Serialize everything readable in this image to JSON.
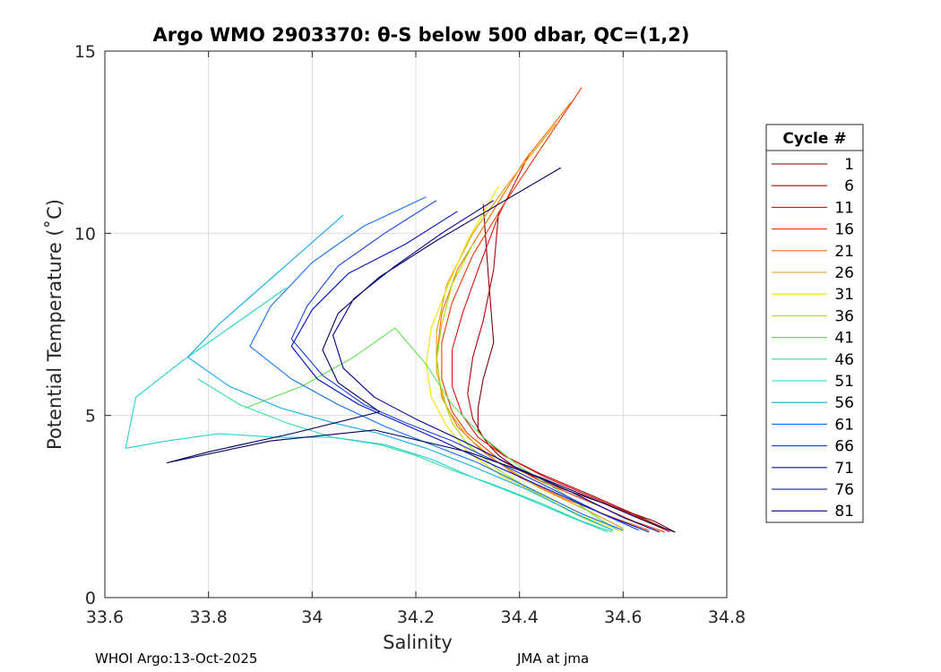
{
  "chart_data": {
    "type": "line",
    "title": "Argo WMO 2903370: θ-S below 500 dbar,  QC=(1,2)",
    "xlabel": "Salinity",
    "ylabel": "Potential Temperature (˚C)",
    "xlim": [
      33.6,
      34.8
    ],
    "ylim": [
      0,
      15
    ],
    "xticks": [
      33.6,
      33.8,
      34,
      34.2,
      34.4,
      34.6,
      34.8
    ],
    "xtick_labels": [
      "33.6",
      "33.8",
      "34",
      "34.2",
      "34.4",
      "34.6",
      "34.8"
    ],
    "yticks": [
      0,
      5,
      10,
      15
    ],
    "ytick_labels": [
      "0",
      "5",
      "10",
      "15"
    ],
    "grid": true,
    "legend": {
      "title": "Cycle #",
      "placement": "right-outside",
      "entries": [
        {
          "label": "1",
          "color": "#800000"
        },
        {
          "label": "6",
          "color": "#b00000"
        },
        {
          "label": "11",
          "color": "#e01010"
        },
        {
          "label": "16",
          "color": "#f03a00"
        },
        {
          "label": "21",
          "color": "#ff6a00"
        },
        {
          "label": "26",
          "color": "#e0a000"
        },
        {
          "label": "31",
          "color": "#f0e000"
        },
        {
          "label": "36",
          "color": "#a8e000"
        },
        {
          "label": "41",
          "color": "#60e050"
        },
        {
          "label": "46",
          "color": "#30e0a0"
        },
        {
          "label": "51",
          "color": "#20d0d0"
        },
        {
          "label": "56",
          "color": "#10a8e8"
        },
        {
          "label": "61",
          "color": "#1070f0"
        },
        {
          "label": "66",
          "color": "#1040e0"
        },
        {
          "label": "71",
          "color": "#0010c0"
        },
        {
          "label": "76",
          "color": "#000090"
        },
        {
          "label": "81",
          "color": "#000060"
        }
      ]
    },
    "series": [
      {
        "name": "1",
        "color": "#800000",
        "x": [
          34.33,
          34.34,
          34.35,
          34.33,
          34.32,
          34.32,
          34.34,
          34.36,
          34.4,
          34.48,
          34.58,
          34.66,
          34.7
        ],
        "y": [
          10.8,
          8.8,
          7.0,
          6.0,
          5.2,
          4.6,
          4.2,
          3.9,
          3.5,
          3.0,
          2.5,
          2.1,
          1.8
        ]
      },
      {
        "name": "6",
        "color": "#b00000",
        "x": [
          34.36,
          34.35,
          34.33,
          34.31,
          34.3,
          34.31,
          34.33,
          34.37,
          34.44,
          34.54,
          34.62,
          34.68
        ],
        "y": [
          10.6,
          9.0,
          7.6,
          6.6,
          5.6,
          4.9,
          4.4,
          3.9,
          3.4,
          2.8,
          2.3,
          1.9
        ]
      },
      {
        "name": "11",
        "color": "#e01010",
        "x": [
          34.42,
          34.36,
          34.32,
          34.29,
          34.27,
          34.27,
          34.29,
          34.32,
          34.37,
          34.45,
          34.55,
          34.63,
          34.69
        ],
        "y": [
          12.2,
          10.5,
          9.0,
          7.8,
          6.8,
          5.8,
          5.0,
          4.4,
          3.9,
          3.3,
          2.7,
          2.2,
          1.8
        ]
      },
      {
        "name": "16",
        "color": "#f03a00",
        "x": [
          34.52,
          34.44,
          34.37,
          34.31,
          34.27,
          34.25,
          34.25,
          34.27,
          34.3,
          34.36,
          34.44,
          34.54,
          34.62,
          34.68
        ],
        "y": [
          14.0,
          12.3,
          10.8,
          9.4,
          8.1,
          7.0,
          6.0,
          5.1,
          4.5,
          3.8,
          3.2,
          2.6,
          2.1,
          1.8
        ]
      },
      {
        "name": "21",
        "color": "#ff6a00",
        "x": [
          34.5,
          34.41,
          34.34,
          34.28,
          34.25,
          34.24,
          34.25,
          34.28,
          34.33,
          34.4,
          34.49,
          34.58,
          34.65
        ],
        "y": [
          13.6,
          12.0,
          10.4,
          9.0,
          7.8,
          6.6,
          5.5,
          4.7,
          4.0,
          3.3,
          2.7,
          2.2,
          1.85
        ]
      },
      {
        "name": "26",
        "color": "#e0a000",
        "x": [
          34.47,
          34.38,
          34.31,
          34.26,
          34.24,
          34.24,
          34.26,
          34.3,
          34.36,
          34.44,
          34.53,
          34.6
        ],
        "y": [
          13.0,
          11.4,
          10.0,
          8.6,
          7.3,
          6.2,
          5.2,
          4.4,
          3.7,
          3.0,
          2.4,
          1.9
        ]
      },
      {
        "name": "31",
        "color": "#f0e000",
        "x": [
          34.36,
          34.3,
          34.26,
          34.23,
          34.22,
          34.23,
          34.26,
          34.3,
          34.37,
          34.46,
          34.55,
          34.6
        ],
        "y": [
          11.3,
          9.8,
          8.5,
          7.4,
          6.4,
          5.5,
          4.7,
          4.0,
          3.3,
          2.7,
          2.1,
          1.8
        ]
      },
      {
        "name": "36",
        "color": "#a8e000",
        "x": [
          34.31,
          34.27,
          34.25,
          34.24,
          34.25,
          34.27,
          34.3,
          34.36,
          34.44,
          34.52,
          34.58
        ],
        "y": [
          9.7,
          8.6,
          7.5,
          6.5,
          5.6,
          4.8,
          4.2,
          3.5,
          2.8,
          2.2,
          1.85
        ]
      },
      {
        "name": "41",
        "color": "#60e050",
        "x": [
          33.87,
          33.98,
          34.08,
          34.16,
          34.22,
          34.27,
          34.33,
          34.4,
          34.48,
          34.55,
          34.59
        ],
        "y": [
          5.2,
          5.8,
          6.6,
          7.4,
          6.4,
          5.3,
          4.4,
          3.6,
          2.9,
          2.2,
          1.85
        ]
      },
      {
        "name": "46",
        "color": "#30e0a0",
        "x": [
          33.78,
          33.86,
          33.95,
          34.04,
          34.13,
          34.2,
          34.27,
          34.35,
          34.44,
          34.52,
          34.58
        ],
        "y": [
          6.0,
          5.3,
          4.8,
          4.4,
          4.2,
          3.9,
          3.5,
          3.1,
          2.6,
          2.1,
          1.8
        ]
      },
      {
        "name": "51",
        "color": "#20d0d0",
        "x": [
          33.95,
          33.85,
          33.75,
          33.66,
          33.64,
          33.72,
          33.82,
          33.93,
          34.04,
          34.14,
          34.23,
          34.31,
          34.4,
          34.5,
          34.57
        ],
        "y": [
          8.5,
          7.5,
          6.5,
          5.5,
          4.1,
          4.3,
          4.5,
          4.4,
          4.4,
          4.2,
          3.8,
          3.3,
          2.8,
          2.2,
          1.8
        ]
      },
      {
        "name": "56",
        "color": "#10a8e8",
        "x": [
          34.06,
          33.98,
          33.9,
          33.82,
          33.76,
          33.84,
          33.94,
          34.04,
          34.13,
          34.22,
          34.31,
          34.41,
          34.51,
          34.58
        ],
        "y": [
          10.5,
          9.5,
          8.5,
          7.5,
          6.6,
          5.8,
          5.2,
          4.8,
          4.5,
          4.1,
          3.6,
          3.0,
          2.3,
          1.85
        ]
      },
      {
        "name": "61",
        "color": "#1070f0",
        "x": [
          34.22,
          34.1,
          34.0,
          33.92,
          33.88,
          33.96,
          34.05,
          34.14,
          34.23,
          34.32,
          34.42,
          34.52,
          34.6
        ],
        "y": [
          11.0,
          10.2,
          9.2,
          8.0,
          6.9,
          6.0,
          5.3,
          4.7,
          4.2,
          3.7,
          3.0,
          2.3,
          1.85
        ]
      },
      {
        "name": "66",
        "color": "#1040e0",
        "x": [
          34.24,
          34.14,
          34.05,
          33.99,
          33.96,
          34.02,
          34.1,
          34.18,
          34.27,
          34.36,
          34.46,
          34.56,
          34.63
        ],
        "y": [
          10.9,
          10.0,
          9.1,
          8.0,
          7.1,
          6.1,
          5.3,
          4.8,
          4.3,
          3.7,
          3.0,
          2.3,
          1.85
        ]
      },
      {
        "name": "71",
        "color": "#0010c0",
        "x": [
          34.28,
          34.18,
          34.07,
          34.0,
          33.96,
          34.01,
          34.09,
          34.17,
          34.25,
          34.34,
          34.45,
          34.56,
          34.65
        ],
        "y": [
          10.6,
          9.7,
          8.9,
          7.9,
          6.9,
          6.0,
          5.3,
          4.8,
          4.3,
          3.7,
          3.0,
          2.3,
          1.8
        ]
      },
      {
        "name": "76",
        "color": "#000090",
        "x": [
          34.35,
          34.25,
          34.16,
          34.08,
          34.04,
          34.06,
          34.12,
          34.2,
          34.29,
          34.39,
          34.5,
          34.6,
          34.67
        ],
        "y": [
          10.9,
          10.0,
          9.1,
          8.2,
          7.2,
          6.3,
          5.5,
          4.9,
          4.3,
          3.6,
          2.9,
          2.2,
          1.8
        ]
      },
      {
        "name": "81",
        "color": "#000060",
        "x": [
          34.48,
          34.36,
          34.24,
          34.13,
          34.05,
          34.02,
          34.05,
          34.13,
          33.96,
          33.8,
          33.72,
          33.92,
          34.12,
          34.3,
          34.44,
          34.56,
          34.66,
          34.7
        ],
        "y": [
          11.8,
          10.8,
          9.8,
          8.8,
          7.8,
          6.8,
          5.9,
          5.1,
          4.5,
          4.0,
          3.7,
          4.3,
          4.6,
          4.0,
          3.3,
          2.6,
          2.0,
          1.8
        ]
      }
    ]
  },
  "footer": {
    "left": "WHOI Argo:13-Oct-2025",
    "right": "JMA at jma"
  }
}
